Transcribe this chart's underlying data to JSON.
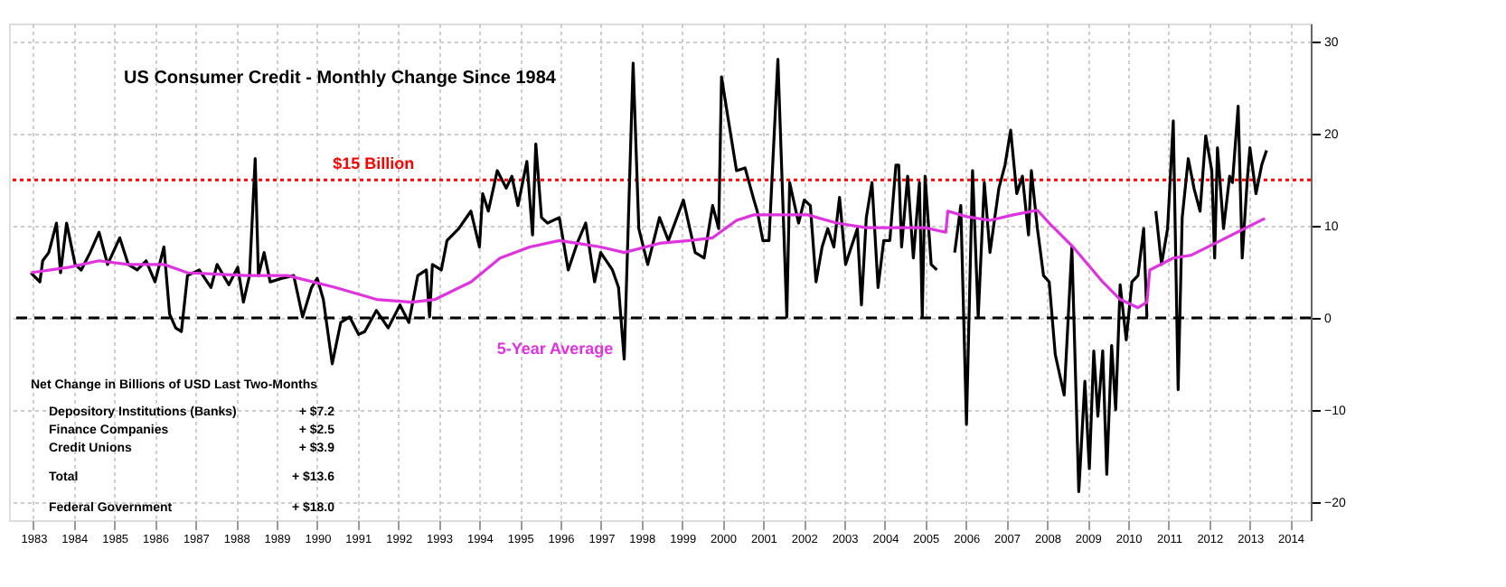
{
  "chart_data": {
    "type": "line",
    "title": "US Consumer Credit - Monthly Change Since 1984",
    "xlim": [
      1982.4,
      2014.5
    ],
    "ylim": [
      -22,
      32
    ],
    "xticks": [
      1983,
      1984,
      1985,
      1986,
      1987,
      1988,
      1989,
      1990,
      1991,
      1992,
      1993,
      1994,
      1995,
      1996,
      1997,
      1998,
      1999,
      2000,
      2001,
      2002,
      2003,
      2004,
      2005,
      2006,
      2007,
      2008,
      2009,
      2010,
      2011,
      2012,
      2013,
      2014
    ],
    "yticks": [
      -20,
      -10,
      0,
      10,
      20,
      30
    ],
    "grid": true,
    "legend": false,
    "marker": "none",
    "series": [
      {
        "color": "#000000",
        "line_style": "solid",
        "x": [
          1982.94,
          1983.16,
          1983.23,
          1983.38,
          1983.57,
          1983.67,
          1983.82,
          1984.03,
          1984.18,
          1984.4,
          1984.62,
          1984.83,
          1985.13,
          1985.34,
          1985.56,
          1985.78,
          1986.0,
          1986.22,
          1986.36,
          1986.51,
          1986.65,
          1986.8,
          1987.09,
          1987.38,
          1987.53,
          1987.82,
          1988.04,
          1988.18,
          1988.33,
          1988.47,
          1988.55,
          1988.69,
          1988.84,
          1989.13,
          1989.42,
          1989.64,
          1989.86,
          1990.0,
          1990.15,
          1990.37,
          1990.58,
          1990.8,
          1991.02,
          1991.17,
          1991.46,
          1991.75,
          1992.04,
          1992.26,
          1992.48,
          1992.69,
          1992.77,
          1992.84,
          1993.06,
          1993.2,
          1993.49,
          1993.79,
          1994.0,
          1994.08,
          1994.22,
          1994.44,
          1994.66,
          1994.8,
          1994.95,
          1995.17,
          1995.31,
          1995.39,
          1995.53,
          1995.68,
          1995.97,
          1996.19,
          1996.41,
          1996.62,
          1996.84,
          1996.99,
          1997.28,
          1997.43,
          1997.57,
          1997.79,
          1997.93,
          1998.15,
          1998.44,
          1998.66,
          1999.03,
          1999.32,
          1999.54,
          1999.75,
          1999.9,
          1999.97,
          2000.12,
          2000.34,
          2000.55,
          2000.77,
          2000.85,
          2000.99,
          2001.14,
          2001.36,
          2001.58,
          2001.65,
          2001.87,
          2002.01,
          2002.16,
          2002.3,
          2002.45,
          2002.59,
          2002.74,
          2002.88,
          2003.03,
          2003.17,
          2003.32,
          2003.42,
          2003.54,
          2003.68,
          2003.83,
          2003.97,
          2004.12,
          2004.27,
          2004.34,
          2004.41,
          2004.56,
          2004.7,
          2004.85,
          2004.92,
          2004.99,
          2005.14,
          2005.28,
          2005.5,
          2005.65,
          2005.72,
          2005.87,
          2006.01,
          2006.16,
          2006.3,
          2006.45,
          2006.59,
          2006.81,
          2006.96,
          2007.1,
          2007.25,
          2007.39,
          2007.54,
          2007.61,
          2007.76,
          2007.91,
          2008.05,
          2008.2,
          2008.42,
          2008.61,
          2008.78,
          2008.93,
          2009.04,
          2009.15,
          2009.25,
          2009.37,
          2009.47,
          2009.59,
          2009.69,
          2009.8,
          2009.95,
          2010.09,
          2010.24,
          2010.38,
          2010.46,
          2010.53,
          2010.65,
          2010.68,
          2010.82,
          2010.97,
          2011.11,
          2011.23,
          2011.33,
          2011.48,
          2011.62,
          2011.77,
          2011.91,
          2012.06,
          2012.13,
          2012.2,
          2012.35,
          2012.5,
          2012.57,
          2012.71,
          2012.81,
          2012.93,
          2013.0,
          2013.15,
          2013.29,
          2013.41
        ],
        "values": [
          4.9,
          3.9,
          6.2,
          7.1,
          10.3,
          4.9,
          10.3,
          5.8,
          5.2,
          7.1,
          9.3,
          5.8,
          8.7,
          5.8,
          5.2,
          6.2,
          3.9,
          7.7,
          0.4,
          -1.1,
          -1.5,
          4.6,
          5.2,
          3.3,
          5.8,
          3.6,
          5.5,
          1.7,
          4.6,
          17.3,
          4.6,
          7.1,
          3.9,
          4.3,
          4.6,
          0.1,
          3.3,
          4.3,
          2.0,
          -5.0,
          -0.5,
          0.1,
          -1.8,
          -1.5,
          0.8,
          -1.1,
          1.4,
          -0.5,
          4.6,
          5.2,
          0.1,
          5.8,
          5.2,
          8.4,
          9.7,
          11.6,
          7.7,
          13.5,
          11.6,
          16.0,
          14.1,
          15.4,
          12.2,
          17.0,
          9.0,
          18.9,
          10.9,
          10.3,
          10.9,
          5.2,
          8.1,
          10.3,
          3.9,
          7.1,
          5.2,
          3.3,
          -4.5,
          27.7,
          9.7,
          5.8,
          10.9,
          8.4,
          12.8,
          7.1,
          6.5,
          12.2,
          9.7,
          26.2,
          22.0,
          16.0,
          16.3,
          12.8,
          11.6,
          8.4,
          8.4,
          28.1,
          0.1,
          14.7,
          10.3,
          12.8,
          12.2,
          3.9,
          7.7,
          9.7,
          7.7,
          13.1,
          5.8,
          7.7,
          9.7,
          1.4,
          10.9,
          14.7,
          3.3,
          8.4,
          8.4,
          16.6,
          16.6,
          7.7,
          15.4,
          6.5,
          14.7,
          0.1,
          15.4,
          5.8,
          5.2,
          null,
          null,
          7.1,
          12.2,
          -11.6,
          16.0,
          0.1,
          14.7,
          7.1,
          14.1,
          16.6,
          20.4,
          13.5,
          15.4,
          9.0,
          16.0,
          9.7,
          4.6,
          3.9,
          -4.0,
          -8.4,
          7.7,
          -18.9,
          -6.9,
          -16.4,
          -3.6,
          -10.7,
          -3.6,
          -17.0,
          -3.0,
          -10.0,
          3.6,
          -2.4,
          3.9,
          4.6,
          9.7,
          0.1,
          null,
          null,
          11.6,
          5.8,
          9.7,
          21.4,
          -7.8,
          10.9,
          17.3,
          14.1,
          11.6,
          19.8,
          16.0,
          6.5,
          18.5,
          9.7,
          15.4,
          14.7,
          23.0,
          6.5,
          14.7,
          18.5,
          13.5,
          16.6,
          18.2
        ]
      },
      {
        "name": "5-Year Average",
        "color": "#e033e0",
        "line_style": "solid",
        "x": [
          1982.94,
          1983.89,
          1984.62,
          1985.34,
          1986.22,
          1986.8,
          1988.25,
          1989.27,
          1990.44,
          1991.46,
          1992.33,
          1992.91,
          1993.79,
          1994.51,
          1995.24,
          1995.97,
          1996.41,
          1996.99,
          1997.57,
          1998.44,
          1999.17,
          1999.75,
          2000.34,
          2000.77,
          2001.36,
          2002.09,
          2002.81,
          2003.54,
          2004.27,
          2004.99,
          2005.5,
          2005.55,
          2006.01,
          2006.59,
          2007.17,
          2007.76,
          2008.05,
          2008.64,
          2009.37,
          2009.8,
          2010.24,
          2010.46,
          2010.53,
          2011.11,
          2011.55,
          2012.28,
          2013.0,
          2013.37
        ],
        "values": [
          4.9,
          5.5,
          6.2,
          5.8,
          5.8,
          4.9,
          4.6,
          4.6,
          3.3,
          2.0,
          1.7,
          2.0,
          3.9,
          6.5,
          7.7,
          8.4,
          8.1,
          7.7,
          7.1,
          8.1,
          8.4,
          8.7,
          10.6,
          11.2,
          11.2,
          11.2,
          10.3,
          9.8,
          9.8,
          9.8,
          9.3,
          11.6,
          11.0,
          10.6,
          11.2,
          11.7,
          10.3,
          7.7,
          3.9,
          2.0,
          1.1,
          1.7,
          5.2,
          6.5,
          6.8,
          8.4,
          10.0,
          10.8
        ]
      }
    ],
    "ref_lines": [
      {
        "axis": "y",
        "value": 15,
        "label": "$15 Billion",
        "color": "#ff0000",
        "line_style": "dotted"
      },
      {
        "axis": "y",
        "value": 0,
        "color": "#000000",
        "line_style": "dashed"
      }
    ],
    "annotations": [
      "Net Change in Billions of USD Last Two-Months",
      "Depository Institutions (Banks)",
      "+ $7.2",
      "Finance Companies",
      "+ $2.5",
      "Credit Unions",
      "+ $3.9",
      "Total",
      "+ $13.6",
      "Federal Government",
      "+ $18.0"
    ]
  }
}
